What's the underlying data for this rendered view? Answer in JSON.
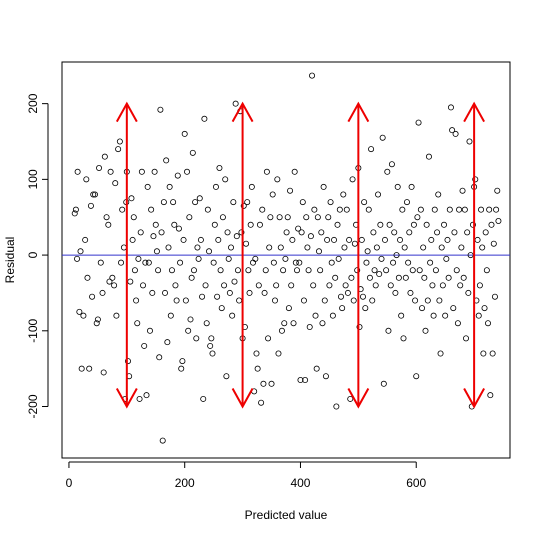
{
  "chart_data": {
    "type": "scatter",
    "xlabel": "Predicted value",
    "ylabel": "Residual",
    "xlim": [
      -12,
      762
    ],
    "ylim": [
      -268,
      255
    ],
    "xticks": [
      0,
      200,
      400,
      600
    ],
    "yticks": [
      -200,
      -100,
      0,
      100,
      200
    ],
    "xtick_labels": [
      "0",
      "200",
      "400",
      "600"
    ],
    "ytick_labels": [
      "-200",
      "-100",
      "0",
      "100",
      "200"
    ],
    "reference_line": {
      "y": 0,
      "color": "#3333cc"
    },
    "arrows": [
      {
        "x": 100,
        "y_from": -200,
        "y_to": 200,
        "color": "#ee0000"
      },
      {
        "x": 300,
        "y_from": -200,
        "y_to": 200,
        "color": "#ee0000"
      },
      {
        "x": 500,
        "y_from": -200,
        "y_to": 200,
        "color": "#ee0000"
      },
      {
        "x": 700,
        "y_from": -200,
        "y_to": 200,
        "color": "#ee0000"
      }
    ],
    "marker": {
      "shape": "open-circle",
      "color": "#000000"
    },
    "points": [
      [
        10,
        55
      ],
      [
        12,
        60
      ],
      [
        14,
        -5
      ],
      [
        15,
        110
      ],
      [
        18,
        -75
      ],
      [
        20,
        5
      ],
      [
        22,
        -150
      ],
      [
        25,
        -80
      ],
      [
        28,
        20
      ],
      [
        30,
        100
      ],
      [
        32,
        -30
      ],
      [
        35,
        -150
      ],
      [
        38,
        65
      ],
      [
        40,
        -55
      ],
      [
        42,
        80
      ],
      [
        45,
        80
      ],
      [
        48,
        -90
      ],
      [
        50,
        -85
      ],
      [
        52,
        115
      ],
      [
        55,
        -10
      ],
      [
        58,
        -50
      ],
      [
        60,
        -155
      ],
      [
        62,
        130
      ],
      [
        65,
        50
      ],
      [
        68,
        40
      ],
      [
        70,
        -35
      ],
      [
        72,
        110
      ],
      [
        75,
        -30
      ],
      [
        78,
        -40
      ],
      [
        80,
        95
      ],
      [
        82,
        -80
      ],
      [
        85,
        140
      ],
      [
        88,
        150
      ],
      [
        90,
        -10
      ],
      [
        92,
        60
      ],
      [
        95,
        10
      ],
      [
        97,
        -190
      ],
      [
        99,
        70
      ],
      [
        100,
        110
      ],
      [
        102,
        -140
      ],
      [
        104,
        -160
      ],
      [
        106,
        -35
      ],
      [
        108,
        75
      ],
      [
        110,
        20
      ],
      [
        112,
        50
      ],
      [
        114,
        -20
      ],
      [
        116,
        -60
      ],
      [
        118,
        -90
      ],
      [
        120,
        -5
      ],
      [
        122,
        -190
      ],
      [
        124,
        30
      ],
      [
        126,
        110
      ],
      [
        128,
        -40
      ],
      [
        130,
        -120
      ],
      [
        132,
        -10
      ],
      [
        134,
        -185
      ],
      [
        136,
        90
      ],
      [
        138,
        -10
      ],
      [
        140,
        -100
      ],
      [
        142,
        60
      ],
      [
        144,
        -50
      ],
      [
        146,
        25
      ],
      [
        148,
        110
      ],
      [
        150,
        40
      ],
      [
        152,
        5
      ],
      [
        154,
        -20
      ],
      [
        156,
        -135
      ],
      [
        158,
        192
      ],
      [
        160,
        30
      ],
      [
        162,
        -245
      ],
      [
        164,
        70
      ],
      [
        166,
        -50
      ],
      [
        168,
        125
      ],
      [
        170,
        -115
      ],
      [
        172,
        10
      ],
      [
        174,
        90
      ],
      [
        176,
        -80
      ],
      [
        178,
        -20
      ],
      [
        180,
        70
      ],
      [
        182,
        40
      ],
      [
        184,
        -40
      ],
      [
        186,
        -60
      ],
      [
        188,
        105
      ],
      [
        190,
        35
      ],
      [
        192,
        -10
      ],
      [
        194,
        -150
      ],
      [
        196,
        -140
      ],
      [
        198,
        20
      ],
      [
        200,
        160
      ],
      [
        202,
        -60
      ],
      [
        204,
        110
      ],
      [
        206,
        -100
      ],
      [
        208,
        50
      ],
      [
        210,
        -85
      ],
      [
        212,
        -30
      ],
      [
        214,
        135
      ],
      [
        216,
        -20
      ],
      [
        218,
        70
      ],
      [
        220,
        -110
      ],
      [
        222,
        10
      ],
      [
        224,
        -5
      ],
      [
        226,
        75
      ],
      [
        228,
        20
      ],
      [
        230,
        -55
      ],
      [
        232,
        -190
      ],
      [
        234,
        180
      ],
      [
        236,
        -40
      ],
      [
        238,
        -90
      ],
      [
        240,
        60
      ],
      [
        242,
        5
      ],
      [
        244,
        -120
      ],
      [
        246,
        -110
      ],
      [
        248,
        -130
      ],
      [
        250,
        -10
      ],
      [
        252,
        40
      ],
      [
        254,
        90
      ],
      [
        256,
        -55
      ],
      [
        258,
        20
      ],
      [
        260,
        115
      ],
      [
        262,
        -20
      ],
      [
        264,
        -70
      ],
      [
        266,
        50
      ],
      [
        268,
        -40
      ],
      [
        270,
        100
      ],
      [
        272,
        -160
      ],
      [
        274,
        30
      ],
      [
        276,
        -5
      ],
      [
        278,
        -50
      ],
      [
        280,
        10
      ],
      [
        282,
        -80
      ],
      [
        284,
        70
      ],
      [
        286,
        -35
      ],
      [
        288,
        200
      ],
      [
        290,
        25
      ],
      [
        292,
        -20
      ],
      [
        294,
        -60
      ],
      [
        296,
        190
      ],
      [
        298,
        30
      ],
      [
        300,
        -110
      ],
      [
        302,
        65
      ],
      [
        304,
        -95
      ],
      [
        306,
        15
      ],
      [
        308,
        70
      ],
      [
        310,
        -20
      ],
      [
        312,
        -50
      ],
      [
        314,
        40
      ],
      [
        316,
        90
      ],
      [
        318,
        -10
      ],
      [
        320,
        -180
      ],
      [
        322,
        -5
      ],
      [
        324,
        -130
      ],
      [
        326,
        -150
      ],
      [
        328,
        -40
      ],
      [
        330,
        40
      ],
      [
        332,
        -195
      ],
      [
        334,
        60
      ],
      [
        336,
        -170
      ],
      [
        338,
        -50
      ],
      [
        340,
        -20
      ],
      [
        342,
        110
      ],
      [
        344,
        -110
      ],
      [
        346,
        10
      ],
      [
        348,
        50
      ],
      [
        350,
        -170
      ],
      [
        352,
        80
      ],
      [
        354,
        -10
      ],
      [
        356,
        -60
      ],
      [
        358,
        -40
      ],
      [
        360,
        100
      ],
      [
        362,
        -130
      ],
      [
        364,
        50
      ],
      [
        366,
        10
      ],
      [
        368,
        -100
      ],
      [
        370,
        -20
      ],
      [
        372,
        -90
      ],
      [
        374,
        -5
      ],
      [
        376,
        30
      ],
      [
        378,
        50
      ],
      [
        380,
        -70
      ],
      [
        382,
        85
      ],
      [
        384,
        -40
      ],
      [
        386,
        20
      ],
      [
        388,
        -90
      ],
      [
        390,
        110
      ],
      [
        392,
        -10
      ],
      [
        394,
        -20
      ],
      [
        396,
        35
      ],
      [
        398,
        -10
      ],
      [
        400,
        -165
      ],
      [
        402,
        30
      ],
      [
        404,
        70
      ],
      [
        406,
        -60
      ],
      [
        408,
        -165
      ],
      [
        410,
        50
      ],
      [
        412,
        10
      ],
      [
        414,
        -20
      ],
      [
        416,
        -95
      ],
      [
        418,
        25
      ],
      [
        420,
        237
      ],
      [
        422,
        -40
      ],
      [
        424,
        60
      ],
      [
        426,
        -80
      ],
      [
        428,
        -150
      ],
      [
        430,
        50
      ],
      [
        432,
        5
      ],
      [
        434,
        -20
      ],
      [
        436,
        30
      ],
      [
        438,
        -90
      ],
      [
        440,
        90
      ],
      [
        442,
        -60
      ],
      [
        444,
        -160
      ],
      [
        446,
        20
      ],
      [
        448,
        50
      ],
      [
        450,
        -40
      ],
      [
        452,
        70
      ],
      [
        454,
        -10
      ],
      [
        456,
        -80
      ],
      [
        458,
        20
      ],
      [
        460,
        -30
      ],
      [
        462,
        -200
      ],
      [
        464,
        40
      ],
      [
        466,
        -5
      ],
      [
        468,
        60
      ],
      [
        470,
        -55
      ],
      [
        472,
        -70
      ],
      [
        474,
        80
      ],
      [
        476,
        10
      ],
      [
        478,
        -40
      ],
      [
        480,
        60
      ],
      [
        482,
        -50
      ],
      [
        484,
        20
      ],
      [
        486,
        -190
      ],
      [
        488,
        -30
      ],
      [
        490,
        100
      ],
      [
        492,
        -60
      ],
      [
        494,
        15
      ],
      [
        496,
        40
      ],
      [
        498,
        -20
      ],
      [
        500,
        115
      ],
      [
        502,
        -95
      ],
      [
        504,
        -45
      ],
      [
        506,
        20
      ],
      [
        508,
        -55
      ],
      [
        510,
        70
      ],
      [
        512,
        -70
      ],
      [
        514,
        -10
      ],
      [
        516,
        5
      ],
      [
        518,
        60
      ],
      [
        520,
        -30
      ],
      [
        522,
        140
      ],
      [
        524,
        -60
      ],
      [
        526,
        30
      ],
      [
        528,
        -20
      ],
      [
        530,
        -40
      ],
      [
        532,
        10
      ],
      [
        534,
        80
      ],
      [
        536,
        -25
      ],
      [
        538,
        40
      ],
      [
        540,
        -5
      ],
      [
        542,
        155
      ],
      [
        544,
        -170
      ],
      [
        546,
        20
      ],
      [
        548,
        -20
      ],
      [
        550,
        110
      ],
      [
        552,
        -100
      ],
      [
        554,
        40
      ],
      [
        556,
        -40
      ],
      [
        558,
        120
      ],
      [
        560,
        -10
      ],
      [
        562,
        30
      ],
      [
        564,
        -50
      ],
      [
        566,
        0
      ],
      [
        568,
        90
      ],
      [
        570,
        -30
      ],
      [
        572,
        20
      ],
      [
        574,
        -80
      ],
      [
        576,
        60
      ],
      [
        578,
        -110
      ],
      [
        580,
        10
      ],
      [
        582,
        -30
      ],
      [
        584,
        70
      ],
      [
        586,
        -10
      ],
      [
        588,
        30
      ],
      [
        590,
        -50
      ],
      [
        592,
        90
      ],
      [
        594,
        -20
      ],
      [
        596,
        40
      ],
      [
        598,
        -60
      ],
      [
        600,
        -160
      ],
      [
        602,
        50
      ],
      [
        604,
        175
      ],
      [
        606,
        -20
      ],
      [
        608,
        60
      ],
      [
        610,
        -70
      ],
      [
        612,
        10
      ],
      [
        614,
        -30
      ],
      [
        616,
        -100
      ],
      [
        618,
        40
      ],
      [
        620,
        -60
      ],
      [
        622,
        130
      ],
      [
        624,
        -10
      ],
      [
        626,
        20
      ],
      [
        628,
        -40
      ],
      [
        630,
        -80
      ],
      [
        632,
        60
      ],
      [
        634,
        -20
      ],
      [
        636,
        30
      ],
      [
        638,
        80
      ],
      [
        640,
        -60
      ],
      [
        642,
        -130
      ],
      [
        644,
        10
      ],
      [
        646,
        -40
      ],
      [
        648,
        40
      ],
      [
        650,
        -80
      ],
      [
        652,
        -5
      ],
      [
        654,
        20
      ],
      [
        656,
        -30
      ],
      [
        658,
        60
      ],
      [
        660,
        195
      ],
      [
        662,
        165
      ],
      [
        664,
        -70
      ],
      [
        666,
        30
      ],
      [
        668,
        160
      ],
      [
        670,
        -20
      ],
      [
        672,
        -90
      ],
      [
        674,
        60
      ],
      [
        676,
        -40
      ],
      [
        678,
        10
      ],
      [
        680,
        85
      ],
      [
        682,
        -30
      ],
      [
        684,
        60
      ],
      [
        686,
        -110
      ],
      [
        688,
        30
      ],
      [
        690,
        -50
      ],
      [
        692,
        150
      ],
      [
        694,
        0
      ],
      [
        696,
        -200
      ],
      [
        698,
        40
      ],
      [
        700,
        90
      ],
      [
        702,
        100
      ],
      [
        704,
        -60
      ],
      [
        706,
        20
      ],
      [
        708,
        -80
      ],
      [
        710,
        -40
      ],
      [
        712,
        60
      ],
      [
        714,
        10
      ],
      [
        716,
        -130
      ],
      [
        718,
        -70
      ],
      [
        720,
        30
      ],
      [
        722,
        -20
      ],
      [
        724,
        -90
      ],
      [
        726,
        60
      ],
      [
        728,
        -185
      ],
      [
        730,
        40
      ],
      [
        732,
        -130
      ],
      [
        734,
        15
      ],
      [
        736,
        -55
      ],
      [
        738,
        60
      ],
      [
        740,
        85
      ],
      [
        742,
        45
      ]
    ]
  }
}
